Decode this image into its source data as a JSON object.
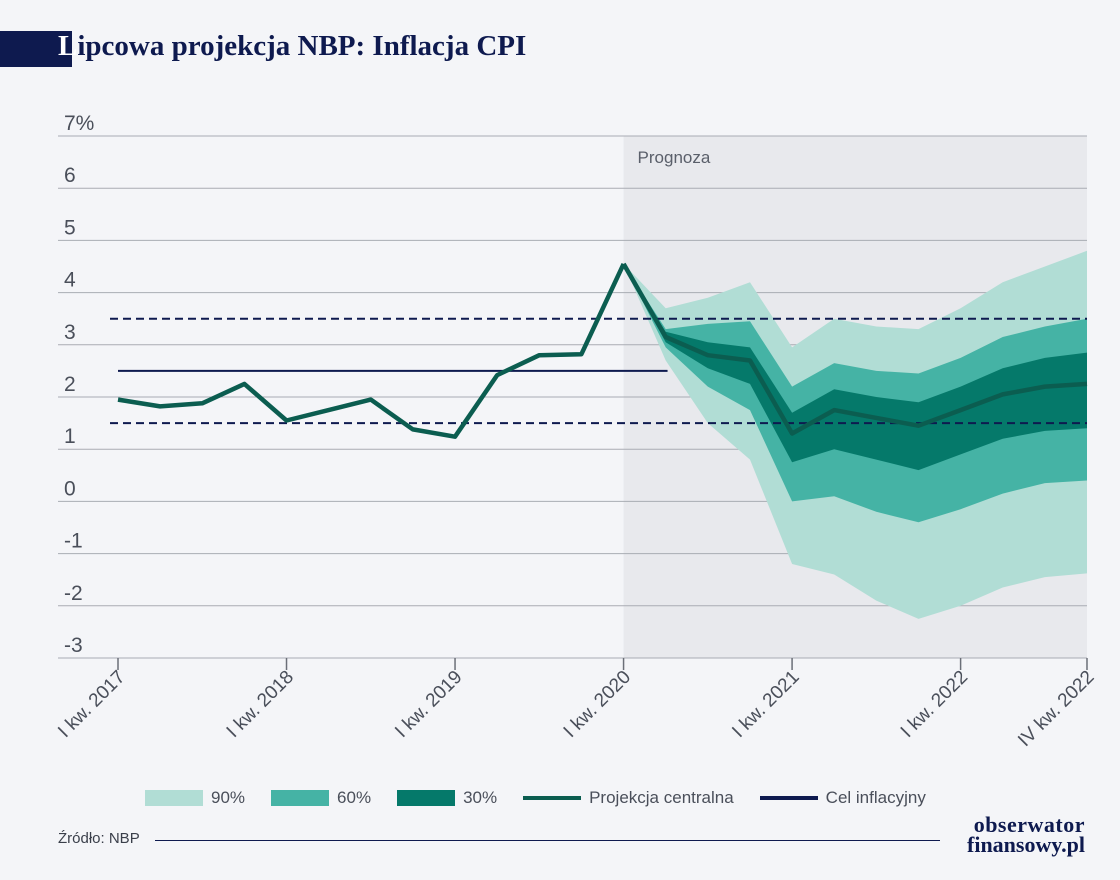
{
  "header": {
    "title_first": "L",
    "title_rest": "ipcowa projekcja NBP: Inflacja CPI"
  },
  "chart_data": {
    "type": "line",
    "title": "Lipcowa projekcja NBP: Inflacja CPI",
    "ylim": [
      -3,
      7
    ],
    "yticks": [
      "7%",
      "6",
      "5",
      "4",
      "3",
      "2",
      "1",
      "0",
      "-1",
      "-2",
      "-3"
    ],
    "x_labels": [
      "I kw. 2017",
      "I kw. 2018",
      "I kw. 2019",
      "I kw. 2020",
      "I kw. 2021",
      "I kw. 2022",
      "IV kw. 2022"
    ],
    "x_label_index": [
      0,
      4,
      8,
      12,
      16,
      20,
      23
    ],
    "forecast_label": "Prognoza",
    "forecast_start_index": 13,
    "colors": {
      "band90": "#b1ddd5",
      "band60": "#45b3a5",
      "band30": "#05796a",
      "central": "#0b5d50",
      "target": "#0e1a4f",
      "forecast_bg": "#e8e9ed"
    },
    "historical": [
      1.95,
      1.82,
      1.88,
      2.25,
      1.55,
      1.75,
      1.95,
      1.38,
      1.24,
      2.42,
      2.8,
      2.82,
      4.55
    ],
    "central_projection": [
      4.55,
      3.15,
      2.8,
      2.7,
      1.3,
      1.75,
      1.6,
      1.45,
      1.75,
      2.05,
      2.2,
      2.25
    ],
    "band_90": {
      "upper": [
        4.55,
        3.7,
        3.9,
        4.2,
        2.95,
        3.5,
        3.35,
        3.3,
        3.7,
        4.2,
        4.5,
        4.8
      ],
      "lower": [
        4.55,
        2.7,
        1.5,
        0.8,
        -1.2,
        -1.4,
        -1.9,
        -2.25,
        -2.0,
        -1.65,
        -1.45,
        -1.38
      ]
    },
    "band_60": {
      "upper": [
        4.55,
        3.3,
        3.4,
        3.45,
        2.2,
        2.65,
        2.5,
        2.45,
        2.75,
        3.15,
        3.35,
        3.5
      ],
      "lower": [
        4.55,
        2.95,
        2.2,
        1.75,
        0.0,
        0.1,
        -0.2,
        -0.4,
        -0.15,
        0.15,
        0.35,
        0.4
      ]
    },
    "band_30": {
      "upper": [
        4.55,
        3.25,
        3.05,
        2.95,
        1.7,
        2.15,
        2.0,
        1.9,
        2.2,
        2.55,
        2.75,
        2.85
      ],
      "lower": [
        4.55,
        3.05,
        2.55,
        2.25,
        0.75,
        1.0,
        0.8,
        0.6,
        0.9,
        1.2,
        1.35,
        1.4
      ]
    },
    "target": {
      "value": 2.5,
      "upper": 3.5,
      "lower": 1.5
    },
    "legend": [
      {
        "label": "90%",
        "kind": "band",
        "color": "#b1ddd5"
      },
      {
        "label": "60%",
        "kind": "band",
        "color": "#45b3a5"
      },
      {
        "label": "30%",
        "kind": "band",
        "color": "#05796a"
      },
      {
        "label": "Projekcja centralna",
        "kind": "line",
        "color": "#0b5d50"
      },
      {
        "label": "Cel inflacyjny",
        "kind": "line",
        "color": "#0e1a4f"
      }
    ]
  },
  "footer": {
    "source": "Źródło: NBP",
    "logo_line1": "obserwator",
    "logo_line2": "finansowy.pl"
  }
}
